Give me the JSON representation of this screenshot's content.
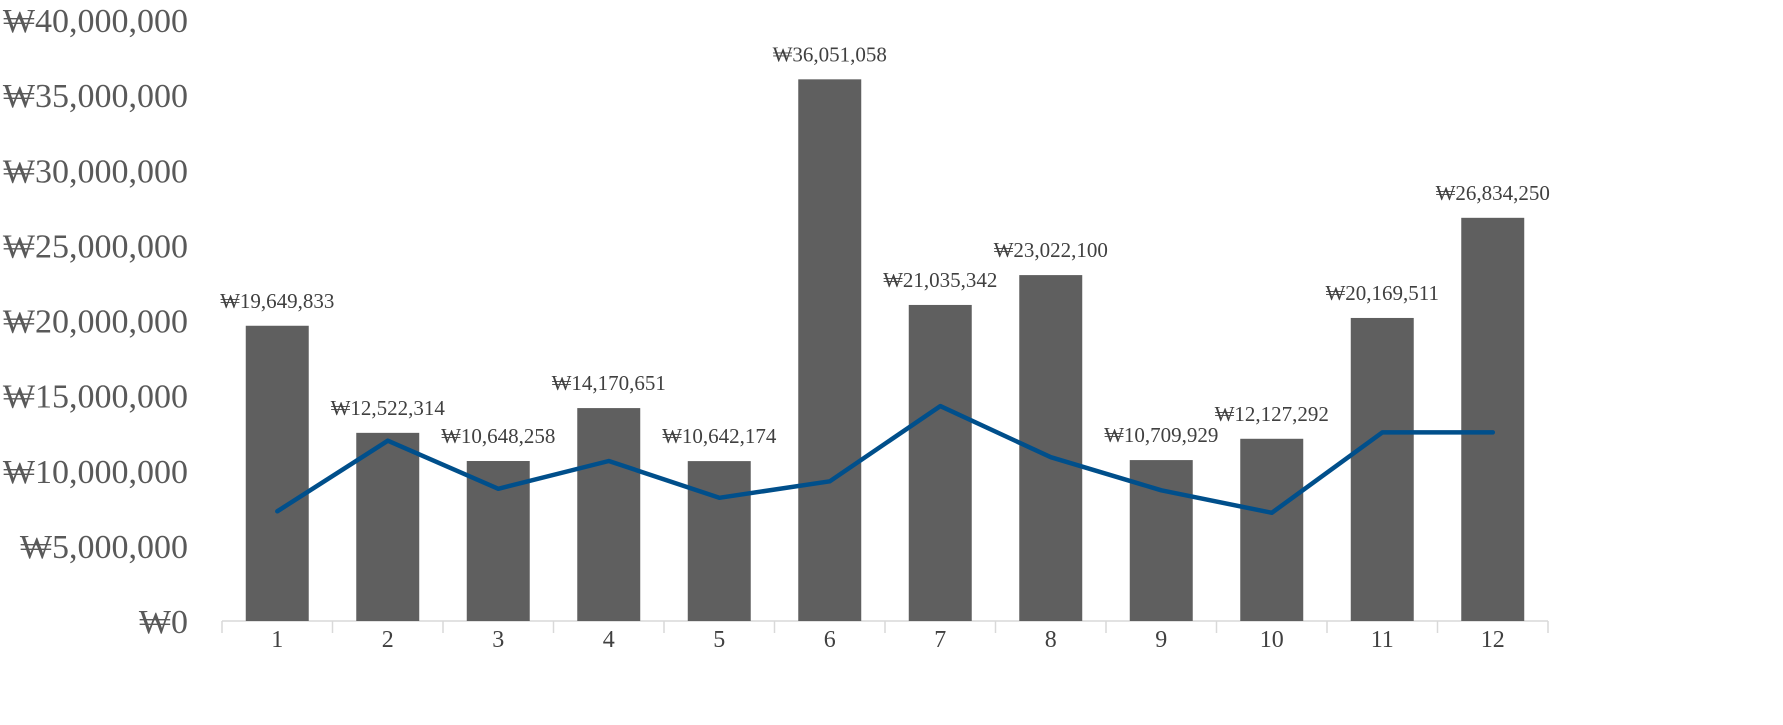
{
  "chart_data": {
    "type": "bar",
    "categories": [
      "1",
      "2",
      "3",
      "4",
      "5",
      "6",
      "7",
      "8",
      "9",
      "10",
      "11",
      "12"
    ],
    "series": [
      {
        "type": "bar",
        "color": "#5f5f5f",
        "values": [
          19649833,
          12522314,
          10648258,
          14170651,
          10642174,
          36051058,
          21035342,
          23022100,
          10709929,
          12127292,
          20169511,
          26834250
        ],
        "data_labels": [
          "₩19,649,833",
          "₩12,522,314",
          "₩10,648,258",
          "₩14,170,651",
          "₩10,642,174",
          "₩36,051,058",
          "₩21,035,342",
          "₩23,022,100",
          "₩10,709,929",
          "₩12,127,292",
          "₩20,169,511",
          "₩26,834,250"
        ]
      },
      {
        "type": "line",
        "color": "#004f8b",
        "values": [
          7300000,
          12000000,
          8800000,
          10650000,
          8200000,
          9300000,
          14300000,
          10900000,
          8700000,
          7200000,
          12550000,
          12550000
        ]
      }
    ],
    "yticks": [
      "₩0",
      "₩5,000,000",
      "₩10,000,000",
      "₩15,000,000",
      "₩20,000,000",
      "₩25,000,000",
      "₩30,000,000",
      "₩35,000,000",
      "₩40,000,000"
    ],
    "ylim": [
      0,
      40000000
    ],
    "grid": false,
    "title": "",
    "xlabel": "",
    "ylabel": ""
  }
}
